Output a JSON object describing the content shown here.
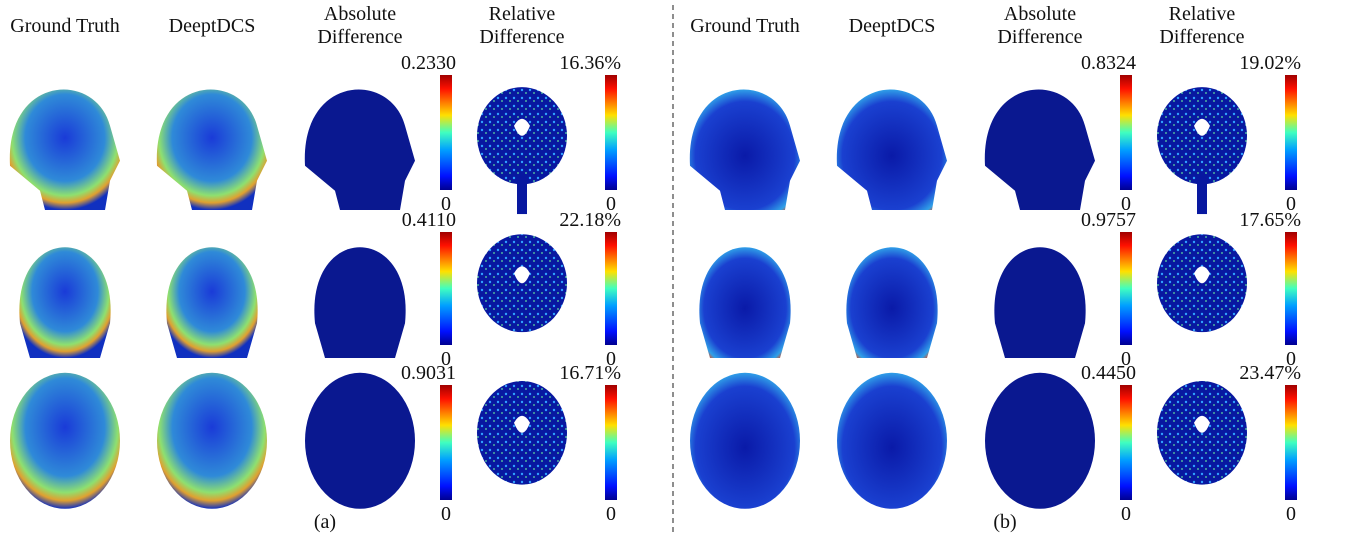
{
  "panels": [
    {
      "label": "(a)",
      "headers": [
        [
          "Ground Truth"
        ],
        [
          "DeeptDCS"
        ],
        [
          "Absolute",
          "Difference"
        ],
        [
          "Relative",
          "Difference"
        ]
      ],
      "rows": [
        {
          "abs_max": "0.2330",
          "abs_min": "0",
          "rel_max": "16.36%",
          "rel_min": "0"
        },
        {
          "abs_max": "0.4110",
          "abs_min": "0",
          "rel_max": "22.18%",
          "rel_min": "0"
        },
        {
          "abs_max": "0.9031",
          "abs_min": "0",
          "rel_max": "16.71%",
          "rel_min": "0"
        }
      ]
    },
    {
      "label": "(b)",
      "headers": [
        [
          "Ground Truth"
        ],
        [
          "DeeptDCS"
        ],
        [
          "Absolute",
          "Difference"
        ],
        [
          "Relative",
          "Difference"
        ]
      ],
      "rows": [
        {
          "abs_max": "0.8324",
          "abs_min": "0",
          "rel_max": "19.02%",
          "rel_min": "0"
        },
        {
          "abs_max": "0.9757",
          "abs_min": "0",
          "rel_max": "17.65%",
          "rel_min": "0"
        },
        {
          "abs_max": "0.4450",
          "abs_min": "0",
          "rel_max": "23.47%",
          "rel_min": "0"
        }
      ]
    }
  ]
}
